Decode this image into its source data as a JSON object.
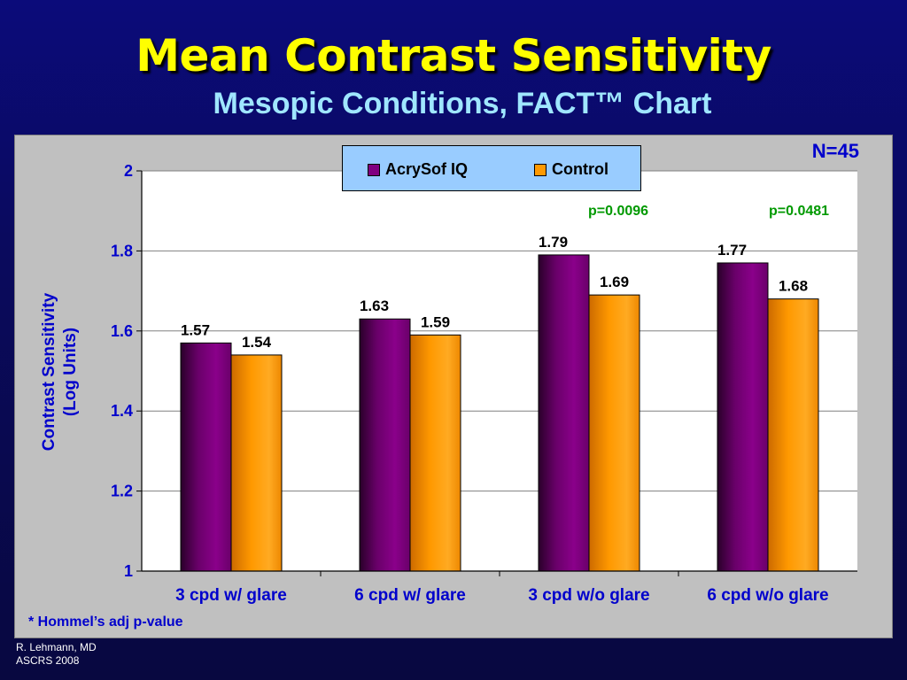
{
  "slide": {
    "title": "Mean Contrast Sensitivity",
    "subtitle": "Mesopic Conditions, FACT™ Chart",
    "n_label": "N=45",
    "footnote": "* Hommel’s adj p-value",
    "credit_line1": "R. Lehmann, MD",
    "credit_line2": "ASCRS 2008"
  },
  "p_values": [
    "p=0.0096",
    "p=0.0481"
  ],
  "colors": {
    "acrysof": "#800080",
    "control": "#ff9900",
    "plot_bg": "#ffffff",
    "panel_bg": "#c0c0c0",
    "legend_bg": "#99ccff",
    "axis_text": "#0000cc",
    "pvalue_text": "#009900"
  },
  "chart_data": {
    "type": "bar",
    "title": "Mean Contrast Sensitivity",
    "subtitle": "Mesopic Conditions, FACT™ Chart",
    "categories": [
      "3 cpd w/ glare",
      "6 cpd w/ glare",
      "3 cpd w/o glare",
      "6 cpd w/o glare"
    ],
    "series": [
      {
        "name": "AcrySof IQ",
        "values": [
          1.57,
          1.63,
          1.79,
          1.77
        ],
        "labels": [
          "1.57",
          "1.63",
          "1.79",
          "1.77"
        ]
      },
      {
        "name": "Control",
        "values": [
          1.54,
          1.59,
          1.69,
          1.68
        ],
        "labels": [
          "1.54",
          "1.59",
          "1.69",
          "1.68"
        ]
      }
    ],
    "ylabel_line1": "Contrast Sensitivity",
    "ylabel_line2": "(Log Units)",
    "xlabel": "",
    "ylim": [
      1,
      2
    ],
    "yticks": [
      "1",
      "1.2",
      "1.4",
      "1.6",
      "1.8",
      "2"
    ],
    "grid": true,
    "legend_position": "top-center"
  }
}
